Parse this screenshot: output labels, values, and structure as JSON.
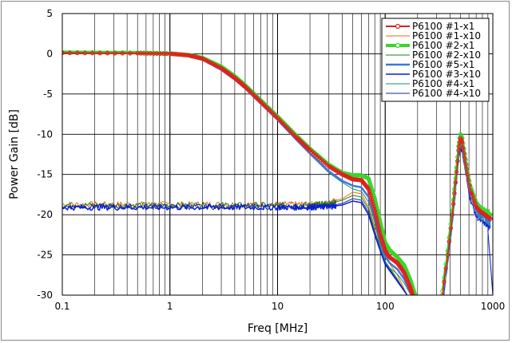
{
  "chart_data": {
    "type": "line",
    "title": "",
    "xlabel": "Freq [MHz]",
    "ylabel": "Power Gain [dB]",
    "xscale": "log",
    "xlim": [
      0.1,
      1000
    ],
    "ylim": [
      -30,
      5
    ],
    "xticks": [
      "0.1",
      "1",
      "10",
      "100",
      "1000"
    ],
    "yticks": [
      "5",
      "0",
      "-5",
      "-10",
      "-15",
      "-20",
      "-25",
      "-30"
    ],
    "grid": true,
    "legend": "top-right",
    "series": [
      {
        "name": "P6100 #1-x1",
        "color": "#e0201c",
        "width": 2,
        "marker": "circle",
        "x": [
          0.1,
          0.5,
          1,
          1.5,
          2,
          3,
          4,
          5,
          7,
          10,
          15,
          20,
          30,
          40,
          50,
          60,
          70,
          80,
          90,
          100,
          110,
          130,
          150,
          170,
          180
        ],
        "y": [
          0.1,
          0.05,
          0,
          -0.2,
          -0.6,
          -1.8,
          -3,
          -4.1,
          -6,
          -8,
          -10.4,
          -12,
          -14,
          -15,
          -15.6,
          -15.7,
          -16.8,
          -19.5,
          -22.5,
          -24.5,
          -25.3,
          -26,
          -27.2,
          -29,
          -30
        ]
      },
      {
        "name": "P6100 #1-x10",
        "color": "#e46c1a",
        "width": 1,
        "marker": "none",
        "x": [
          0.1,
          0.3,
          1,
          3,
          10,
          20,
          30,
          40,
          50,
          60,
          70,
          80,
          90,
          100,
          130,
          160
        ],
        "y": [
          -18.7,
          -18.7,
          -18.7,
          -18.7,
          -18.7,
          -18.7,
          -18.5,
          -18,
          -17.2,
          -17.4,
          -19,
          -21.5,
          -23.5,
          -25.3,
          -27.5,
          -30
        ]
      },
      {
        "name": "P6100 #2-x1",
        "color": "#3ad62a",
        "width": 4,
        "marker": "circle",
        "x": [
          0.1,
          0.5,
          1,
          1.5,
          2,
          3,
          4,
          5,
          7,
          10,
          15,
          20,
          30,
          40,
          50,
          60,
          70,
          80,
          90,
          100,
          110,
          130,
          150,
          170,
          190
        ],
        "y": [
          0.2,
          0.15,
          0.05,
          -0.15,
          -0.5,
          -1.6,
          -2.8,
          -3.9,
          -5.8,
          -7.8,
          -10.2,
          -11.8,
          -13.8,
          -14.8,
          -15.1,
          -15.1,
          -15.5,
          -18,
          -21,
          -23.5,
          -24.4,
          -25.3,
          -26.3,
          -28,
          -30
        ]
      },
      {
        "name": "P6100 #2-x10",
        "color": "#1a7f1a",
        "width": 1,
        "marker": "none",
        "x": [
          0.1,
          0.3,
          1,
          3,
          10,
          20,
          30,
          40,
          50,
          60,
          70,
          80,
          90,
          100,
          130,
          160
        ],
        "y": [
          -18.8,
          -18.8,
          -18.8,
          -18.8,
          -18.8,
          -18.8,
          -18.6,
          -18.2,
          -17.6,
          -17.8,
          -19.3,
          -22,
          -24,
          -25.8,
          -28,
          -30
        ]
      },
      {
        "name": "P6100 #5-x1",
        "color": "#3c78d8",
        "width": 2.5,
        "marker": "none",
        "x": [
          0.1,
          0.5,
          1,
          1.5,
          2,
          3,
          4,
          5,
          7,
          10,
          15,
          20,
          30,
          40,
          50,
          60,
          70,
          80,
          90,
          100,
          110,
          130,
          150,
          170,
          180
        ],
        "y": [
          0.1,
          0.05,
          0,
          -0.25,
          -0.7,
          -2,
          -3.2,
          -4.3,
          -6.2,
          -8.2,
          -10.7,
          -12.4,
          -14.6,
          -15.8,
          -16.4,
          -16.6,
          -17.8,
          -20.4,
          -23.4,
          -25.2,
          -26,
          -26.8,
          -28,
          -29.5,
          -30
        ]
      },
      {
        "name": "P6100 #3-x10",
        "color": "#0a1fd6",
        "width": 1.5,
        "marker": "none",
        "x": [
          0.1,
          0.3,
          1,
          3,
          10,
          20,
          30,
          40,
          50,
          60,
          70,
          80,
          90,
          100,
          130,
          160
        ],
        "y": [
          -19.1,
          -19.1,
          -19.1,
          -19.1,
          -19.1,
          -19.1,
          -19,
          -18.8,
          -18.3,
          -18.5,
          -20,
          -22.5,
          -24.5,
          -26.2,
          -28.3,
          -30
        ]
      },
      {
        "name": "P6100 #4-x1",
        "color": "#1b8a8a",
        "width": 1,
        "marker": "none",
        "x": [
          0.1,
          0.5,
          1,
          1.5,
          2,
          3,
          4,
          5,
          7,
          10,
          15,
          20,
          30,
          40,
          50,
          60,
          70,
          80,
          90,
          100,
          110,
          130,
          150,
          170,
          180
        ],
        "y": [
          0.1,
          0.05,
          0,
          -0.25,
          -0.7,
          -2,
          -3.2,
          -4.3,
          -6.2,
          -8.2,
          -10.7,
          -12.5,
          -14.8,
          -16,
          -16.8,
          -17.1,
          -18.4,
          -21,
          -24,
          -25.8,
          -26.6,
          -27.4,
          -28.5,
          -29.8,
          -30
        ]
      },
      {
        "name": "P6100 #4-x10",
        "color": "#1a2a8a",
        "width": 1,
        "marker": "none",
        "x": [
          0.1,
          0.3,
          1,
          3,
          10,
          20,
          30,
          40,
          50,
          60,
          70,
          80,
          90,
          100,
          130,
          160
        ],
        "y": [
          -19.0,
          -19.0,
          -19.0,
          -19.0,
          -19.0,
          -19.0,
          -18.9,
          -18.6,
          -18.0,
          -18.2,
          -19.7,
          -22.3,
          -24.3,
          -26,
          -28.2,
          -30
        ]
      }
    ],
    "resonance": {
      "x": [
        340,
        380,
        420,
        450,
        480,
        500,
        520,
        550,
        580,
        620,
        660,
        700,
        750,
        800,
        850,
        900,
        950
      ],
      "y": [
        -30,
        -25,
        -20,
        -16,
        -12,
        -10.5,
        -11,
        -13,
        -15,
        -17,
        -18,
        -19,
        -19.5,
        -19.8,
        -20,
        -20.3,
        -20.5
      ],
      "offsets": [
        {
          "series": 0,
          "dy": 0
        },
        {
          "series": 1,
          "dy": 0.3
        },
        {
          "series": 2,
          "dy": 0.5
        },
        {
          "series": 3,
          "dy": -0.3
        },
        {
          "series": 4,
          "dy": -0.5
        },
        {
          "series": 5,
          "dy": -1.2
        },
        {
          "series": 6,
          "dy": -0.8
        },
        {
          "series": 7,
          "dy": -0.2
        }
      ],
      "blue_drop": {
        "x": [
          900,
          950,
          1000
        ],
        "y": [
          -22,
          -26,
          -30
        ]
      }
    }
  }
}
